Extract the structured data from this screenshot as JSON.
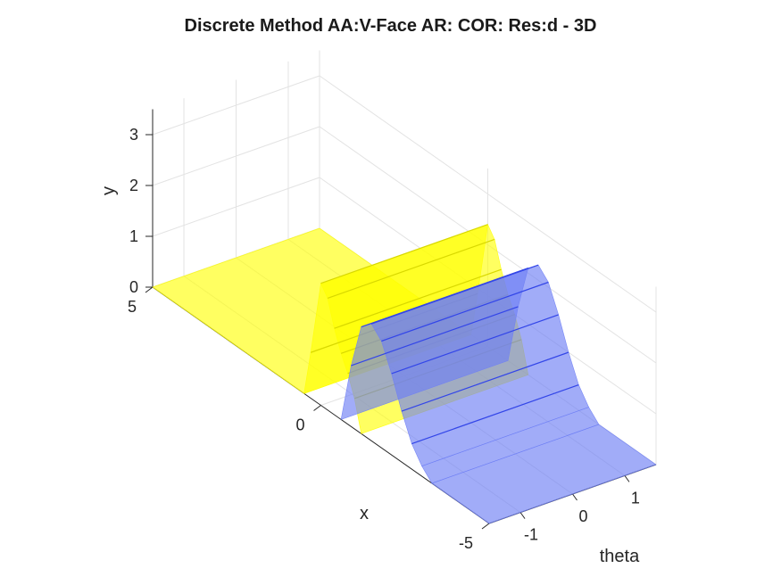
{
  "chart_data": {
    "type": "surface",
    "title": "Discrete Method AA:V-Face AR: COR: Res:d - 3D",
    "xlabel": "x",
    "ylabel": "y",
    "zlabel": "theta",
    "x_ticks": [
      "5",
      "0",
      "-5"
    ],
    "y_ticks": [
      "0",
      "1",
      "2",
      "3"
    ],
    "theta_ticks": [
      "-1",
      "0",
      "1"
    ],
    "x_range": [
      -5,
      5
    ],
    "y_range": [
      0,
      3.5
    ],
    "theta_range": [
      -1.6,
      1.6
    ],
    "grid": true,
    "series": [
      {
        "color": "#ffff00",
        "x": [
          5,
          0.5,
          0.3,
          0.0,
          -0.2,
          -0.4,
          -0.6,
          -0.8,
          -1.0,
          -1.2
        ],
        "y": [
          0,
          0,
          0.9,
          2.4,
          2.2,
          1.7,
          1.3,
          1.0,
          0.6,
          0
        ],
        "theta_span": [
          -1.6,
          1.6
        ]
      },
      {
        "color": "#6f7ff5",
        "x": [
          -0.6,
          -0.9,
          -1.2,
          -1.5,
          -1.8,
          -2.1,
          -2.4,
          -2.7,
          -3.0,
          -3.3,
          -5
        ],
        "y": [
          0,
          1.2,
          2.1,
          2.3,
          2.1,
          1.6,
          1.0,
          0.5,
          0.2,
          0,
          0
        ],
        "theta_span": [
          -1.6,
          1.6
        ]
      }
    ]
  }
}
